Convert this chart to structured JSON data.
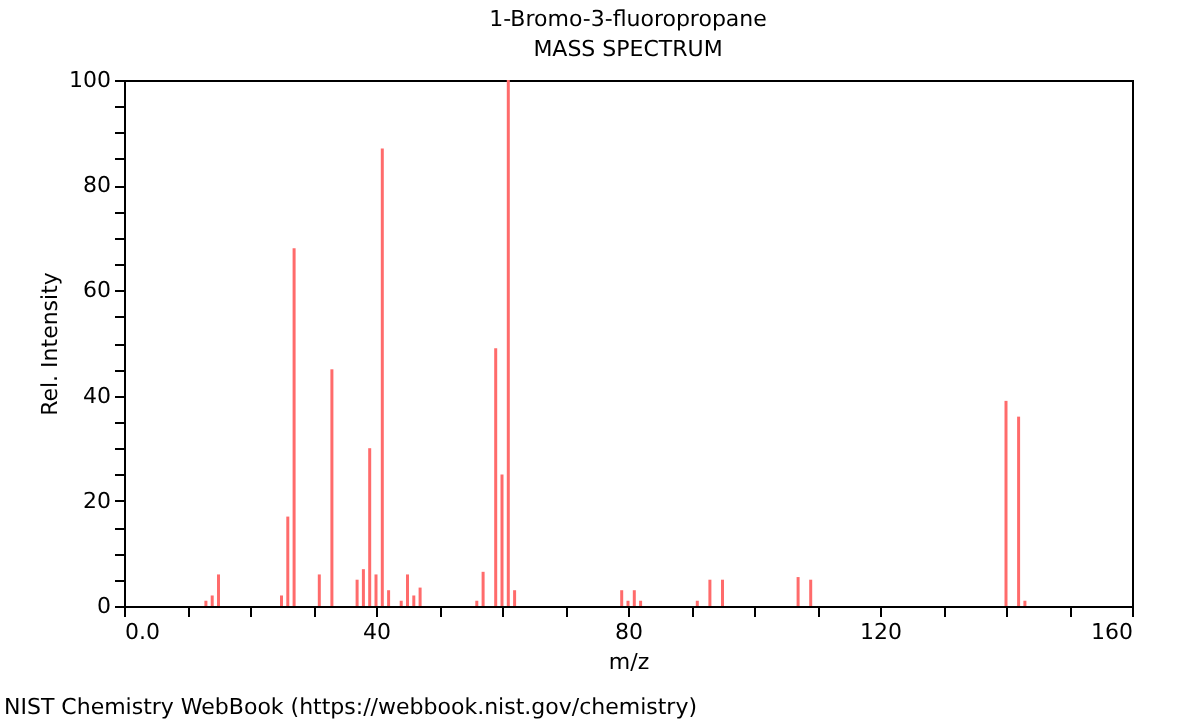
{
  "chart_data": {
    "type": "bar",
    "title": "1-Bromo-3-fluoropropane",
    "subtitle": "MASS SPECTRUM",
    "xlabel": "m/z",
    "ylabel": "Rel. Intensity",
    "x": [
      13,
      14,
      15,
      25,
      26,
      27,
      31,
      33,
      37,
      38,
      39,
      40,
      41,
      42,
      44,
      45,
      46,
      47,
      56,
      57,
      59,
      60,
      61,
      62,
      79,
      80,
      81,
      82,
      91,
      93,
      95,
      107,
      109,
      140,
      142,
      143
    ],
    "values": [
      1,
      2,
      6,
      2,
      17,
      68,
      6,
      45,
      5,
      7,
      30,
      6,
      87,
      3,
      1,
      6,
      2,
      3.5,
      1,
      6.5,
      49,
      25,
      100,
      3,
      3,
      1,
      3,
      1,
      1,
      5,
      5,
      5.5,
      5,
      39,
      36,
      1
    ],
    "color": "#ff6b6b",
    "xlim": [
      0,
      160
    ],
    "ylim": [
      0,
      100
    ],
    "xticks": [
      {
        "value": 0,
        "label": "0.0"
      },
      {
        "value": 10,
        "label": null
      },
      {
        "value": 20,
        "label": null
      },
      {
        "value": 30,
        "label": null
      },
      40,
      {
        "value": 50,
        "label": null
      },
      {
        "value": 60,
        "label": null
      },
      {
        "value": 70,
        "label": null
      },
      80,
      {
        "value": 90,
        "label": null
      },
      {
        "value": 100,
        "label": null
      },
      {
        "value": 110,
        "label": null
      },
      120,
      {
        "value": 130,
        "label": null
      },
      {
        "value": 140,
        "label": null
      },
      {
        "value": 150,
        "label": null
      },
      160
    ],
    "yticks": [
      0,
      {
        "value": 5,
        "label": null
      },
      {
        "value": 10,
        "label": null
      },
      {
        "value": 15,
        "label": null
      },
      20,
      {
        "value": 25,
        "label": null
      },
      {
        "value": 30,
        "label": null
      },
      {
        "value": 35,
        "label": null
      },
      40,
      {
        "value": 45,
        "label": null
      },
      {
        "value": 50,
        "label": null
      },
      {
        "value": 55,
        "label": null
      },
      60,
      {
        "value": 65,
        "label": null
      },
      {
        "value": 70,
        "label": null
      },
      {
        "value": 75,
        "label": null
      },
      80,
      {
        "value": 85,
        "label": null
      },
      {
        "value": 90,
        "label": null
      },
      {
        "value": 95,
        "label": null
      },
      100
    ],
    "grid": false,
    "annotations": [
      "NIST Chemistry WebBook (https://webbook.nist.gov/chemistry)"
    ]
  }
}
